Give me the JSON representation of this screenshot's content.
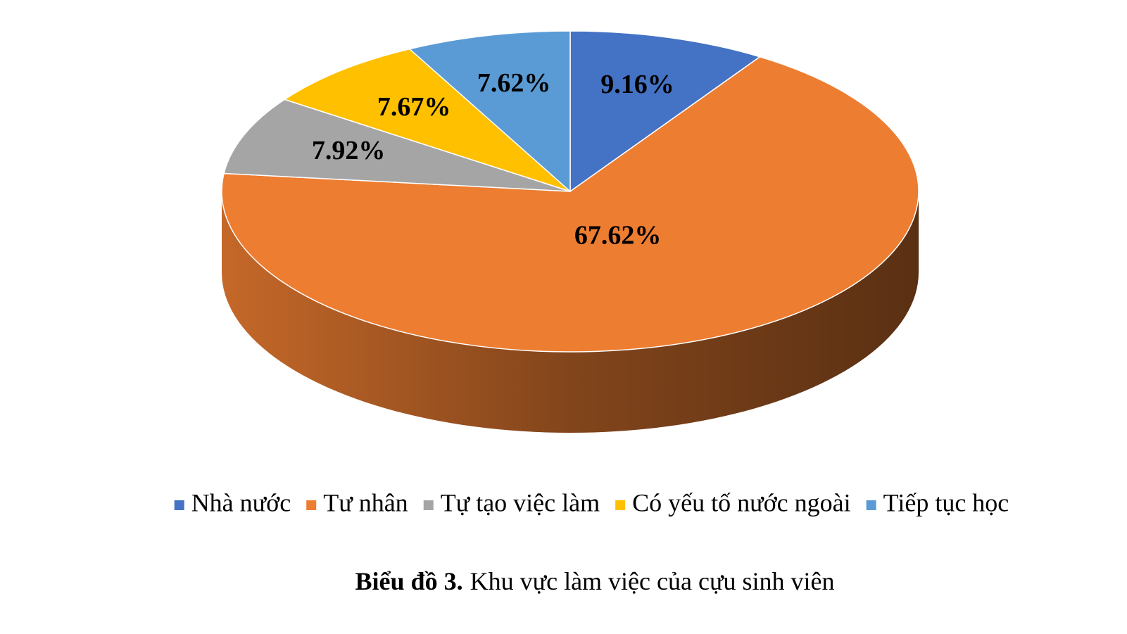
{
  "chart_data": {
    "type": "pie3d",
    "series": [
      {
        "name": "Nhà nước",
        "color": "#4472c4",
        "values": [
          9.16
        ],
        "value_labels": [
          "9.16%"
        ]
      },
      {
        "name": "Tư nhân",
        "color": "#ed7d31",
        "values": [
          67.62
        ],
        "value_labels": [
          "67.62%"
        ]
      },
      {
        "name": "Tự tạo việc làm",
        "color": "#a5a5a5",
        "values": [
          7.92
        ],
        "value_labels": [
          "7.92%"
        ]
      },
      {
        "name": "Có yếu tố nước ngoài",
        "color": "#ffc000",
        "values": [
          7.67
        ],
        "value_labels": [
          "7.67%"
        ]
      },
      {
        "name": "Tiếp tục học",
        "color": "#5b9bd5",
        "values": [
          7.62
        ],
        "value_labels": [
          "7.62%"
        ]
      }
    ],
    "legend": "bottom",
    "caption": {
      "label": "Biểu đồ 3.",
      "text": "Khu vực làm việc của cựu sinh viên"
    }
  }
}
